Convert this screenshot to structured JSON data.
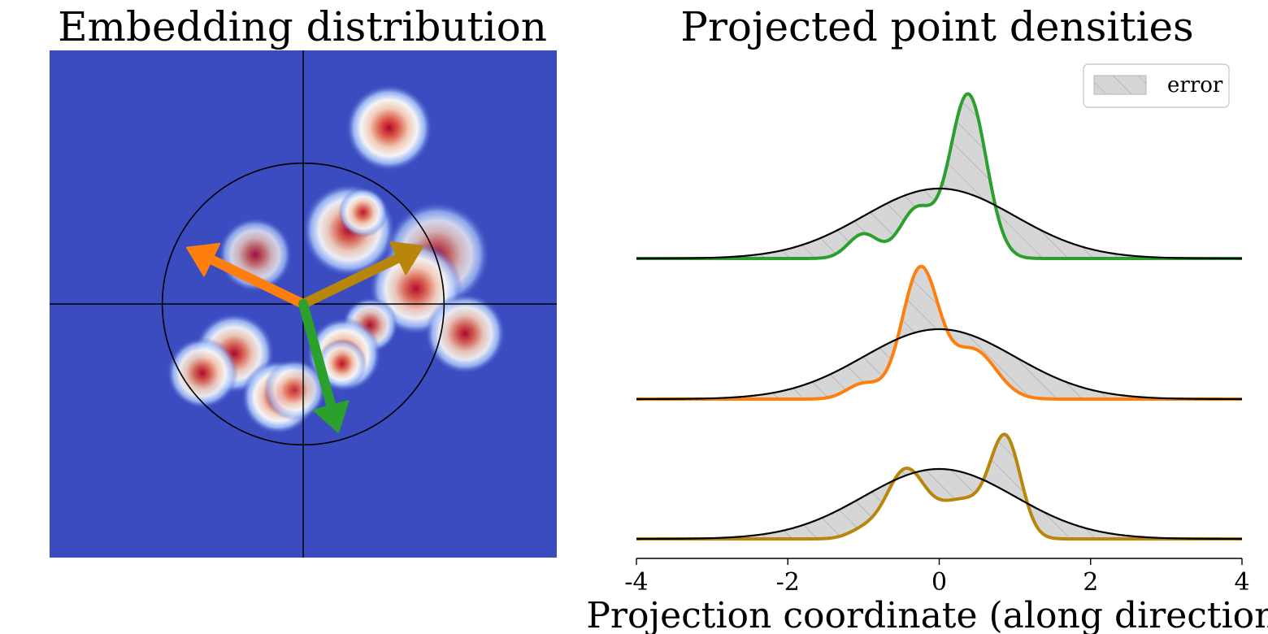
{
  "chart_data": [
    {
      "type": "heatmap",
      "title": "Embedding distribution",
      "colormap": "coolwarm",
      "background_color": "#3b4cc0",
      "xlim": [
        -3.6,
        3.6
      ],
      "ylim": [
        -3.6,
        3.6
      ],
      "circle_radius": 2,
      "crosshair_axes": true,
      "clusters": [
        {
          "x": 1.22,
          "y": 2.5,
          "weight": 1.0,
          "spread": 0.28
        },
        {
          "x": 0.65,
          "y": 1.05,
          "weight": 0.9,
          "spread": 0.3
        },
        {
          "x": 0.85,
          "y": 1.3,
          "weight": 0.8,
          "spread": 0.16
        },
        {
          "x": -0.68,
          "y": 0.7,
          "weight": 0.55,
          "spread": 0.24
        },
        {
          "x": 1.9,
          "y": 0.7,
          "weight": 0.6,
          "spread": 0.34
        },
        {
          "x": 1.6,
          "y": 0.22,
          "weight": 0.9,
          "spread": 0.3
        },
        {
          "x": 2.3,
          "y": -0.42,
          "weight": 0.85,
          "spread": 0.26
        },
        {
          "x": 0.95,
          "y": -0.3,
          "weight": 0.75,
          "spread": 0.18
        },
        {
          "x": 0.58,
          "y": -0.72,
          "weight": 1.0,
          "spread": 0.24
        },
        {
          "x": 0.55,
          "y": -0.85,
          "weight": 0.75,
          "spread": 0.16
        },
        {
          "x": -0.98,
          "y": -0.7,
          "weight": 0.9,
          "spread": 0.26
        },
        {
          "x": -1.43,
          "y": -0.98,
          "weight": 0.85,
          "spread": 0.23
        },
        {
          "x": -0.35,
          "y": -1.32,
          "weight": 1.0,
          "spread": 0.24
        },
        {
          "x": -0.12,
          "y": -1.22,
          "weight": 0.6,
          "spread": 0.2
        }
      ],
      "arrows": [
        {
          "color": "#ff7f0e",
          "dx": -1.65,
          "dy": 0.8
        },
        {
          "color": "#b8860b",
          "dx": 1.7,
          "dy": 0.82
        },
        {
          "color": "#2ca02c",
          "dx": 0.5,
          "dy": -1.82
        }
      ]
    },
    {
      "type": "area",
      "title": "Projected point densities",
      "xlabel": "Projection coordinate (along direction)",
      "xlim": [
        -4,
        4
      ],
      "xticks": [
        -4,
        -2,
        0,
        2,
        4
      ],
      "xtick_labels": [
        "-4",
        "-2",
        "0",
        "2",
        "4"
      ],
      "legend": {
        "label": "error",
        "position": "top-right"
      },
      "reference": {
        "distribution": "gaussian",
        "mean": 0,
        "std": 1,
        "peak_height": 1.0,
        "color": "#000000"
      },
      "series": [
        {
          "color": "#2ca02c",
          "components": [
            [
              0.38,
              0.24,
              2.35
            ],
            [
              -0.3,
              0.22,
              0.7
            ],
            [
              -1.0,
              0.2,
              0.35
            ]
          ]
        },
        {
          "color": "#ff7f0e",
          "components": [
            [
              -0.25,
              0.24,
              1.85
            ],
            [
              0.45,
              0.3,
              0.7
            ],
            [
              -1.0,
              0.22,
              0.22
            ]
          ]
        },
        {
          "color": "#b8860b",
          "components": [
            [
              0.88,
              0.2,
              1.35
            ],
            [
              -0.45,
              0.25,
              0.95
            ],
            [
              0.3,
              0.35,
              0.55
            ],
            [
              -1.0,
              0.2,
              0.12
            ]
          ]
        }
      ]
    }
  ]
}
